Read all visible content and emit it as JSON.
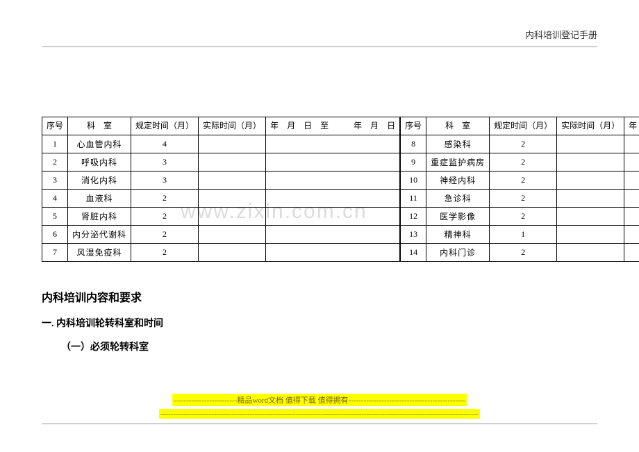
{
  "header": {
    "title": "内科培训登记手册"
  },
  "watermark": "www.zixin.com.cn",
  "table": {
    "headers": {
      "seq": "序号",
      "dept": "科　室",
      "reg": "规定时间（月）",
      "act": "实际时间（月）",
      "date": "年　月　日　至　　　年　月　日"
    },
    "left": [
      {
        "n": "1",
        "dept": "心血管内科",
        "reg": "4"
      },
      {
        "n": "2",
        "dept": "呼吸内科",
        "reg": "3"
      },
      {
        "n": "3",
        "dept": "消化内科",
        "reg": "3"
      },
      {
        "n": "4",
        "dept": "血液科",
        "reg": "2"
      },
      {
        "n": "5",
        "dept": "肾脏内科",
        "reg": "2"
      },
      {
        "n": "6",
        "dept": "内分泌代谢科",
        "reg": "2"
      },
      {
        "n": "7",
        "dept": "风湿免疫科",
        "reg": "2"
      }
    ],
    "right": [
      {
        "n": "8",
        "dept": "感染科",
        "reg": "2"
      },
      {
        "n": "9",
        "dept": "重症监护病房",
        "reg": "2"
      },
      {
        "n": "10",
        "dept": "神经内科",
        "reg": "2"
      },
      {
        "n": "11",
        "dept": "急诊科",
        "reg": "2"
      },
      {
        "n": "12",
        "dept": "医学影像",
        "reg": "2"
      },
      {
        "n": "13",
        "dept": "精神科",
        "reg": "1"
      },
      {
        "n": "14",
        "dept": "内科门诊",
        "reg": "2"
      }
    ]
  },
  "section": {
    "h2": "内科培训内容和要求",
    "sub1": "一. 内科培训轮转科室和时间",
    "sub2": "（一）必须轮转科室"
  },
  "footer": {
    "line1": "-------------------------精品word文档 值得下载 值得拥有----------------------------------------------",
    "line2": "-----------------------------------------------------------------------------------------------------------------------------"
  }
}
